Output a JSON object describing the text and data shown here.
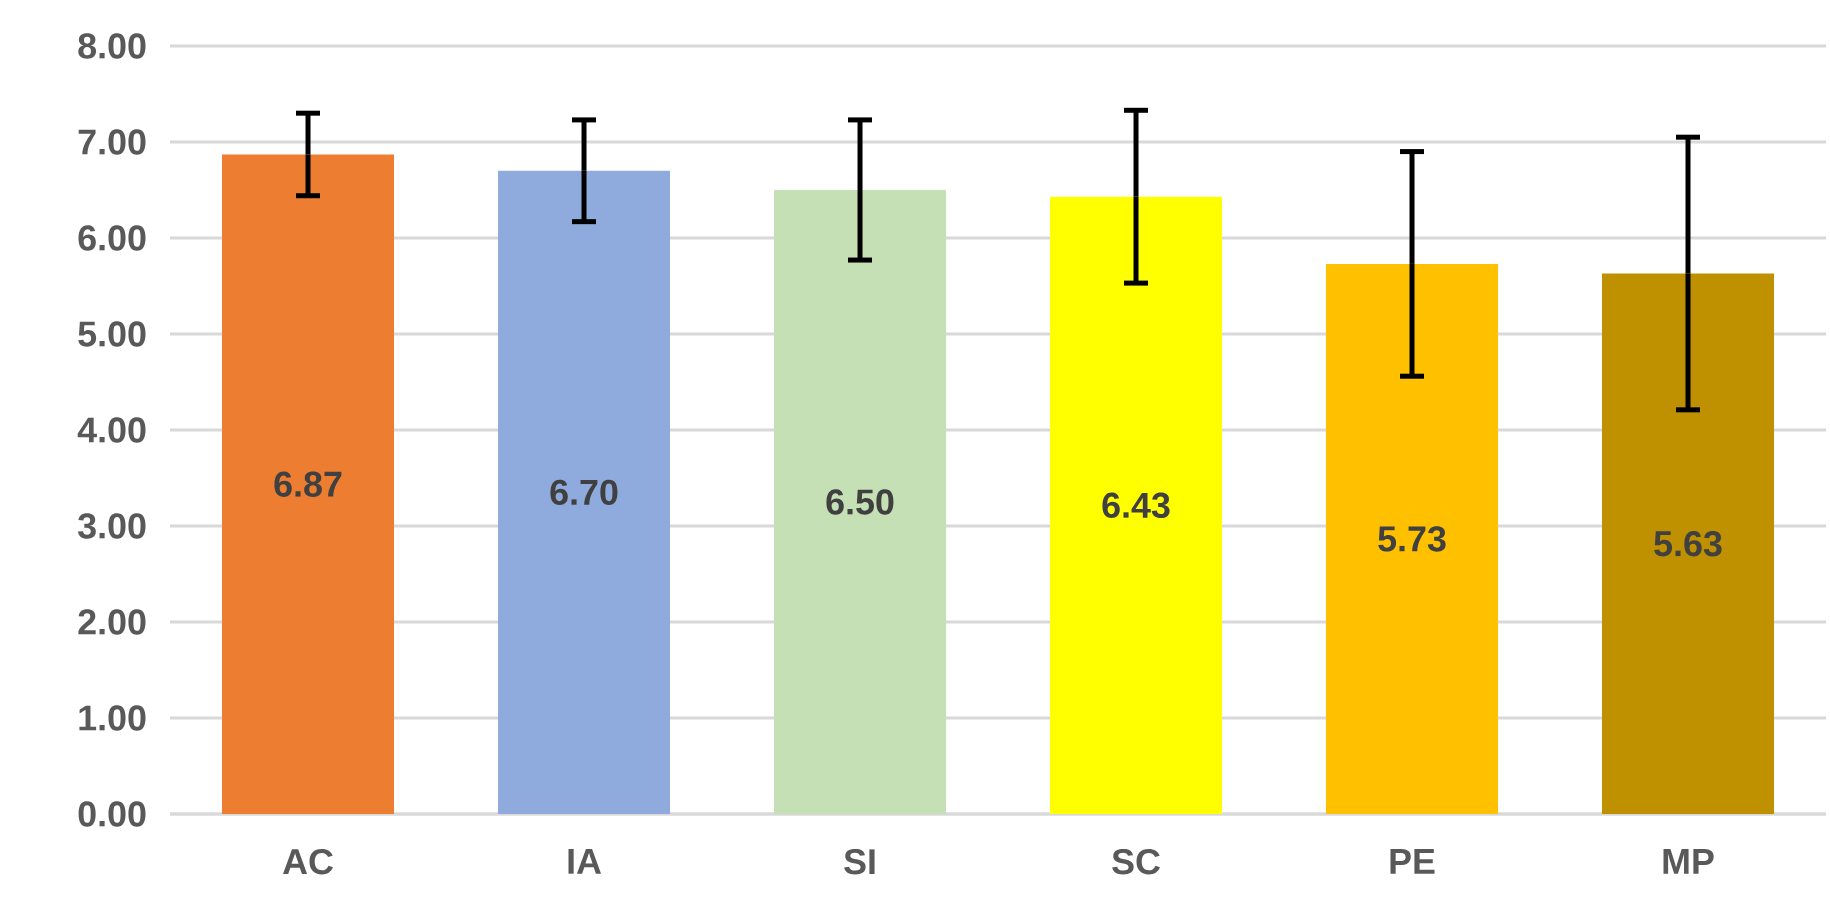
{
  "chart_data": {
    "type": "bar",
    "categories": [
      "AC",
      "IA",
      "SI",
      "SC",
      "PE",
      "MP"
    ],
    "values": [
      6.87,
      6.7,
      6.5,
      6.43,
      5.73,
      5.63
    ],
    "value_labels": [
      "6.87",
      "6.70",
      "6.50",
      "6.43",
      "5.73",
      "5.63"
    ],
    "errors": [
      0.43,
      0.53,
      0.73,
      0.9,
      1.17,
      1.42
    ],
    "colors": [
      "#ed7d31",
      "#8faadc",
      "#c5e0b4",
      "#ffff00",
      "#ffc000",
      "#bf9000"
    ],
    "ylim": [
      0,
      8
    ],
    "yticks": [
      {
        "value": 0,
        "label": "0.00"
      },
      {
        "value": 1,
        "label": "1.00"
      },
      {
        "value": 2,
        "label": "2.00"
      },
      {
        "value": 3,
        "label": "3.00"
      },
      {
        "value": 4,
        "label": "4.00"
      },
      {
        "value": 5,
        "label": "5.00"
      },
      {
        "value": 6,
        "label": "6.00"
      },
      {
        "value": 7,
        "label": "7.00"
      },
      {
        "value": 8,
        "label": "8.00"
      }
    ],
    "grid": "y"
  }
}
